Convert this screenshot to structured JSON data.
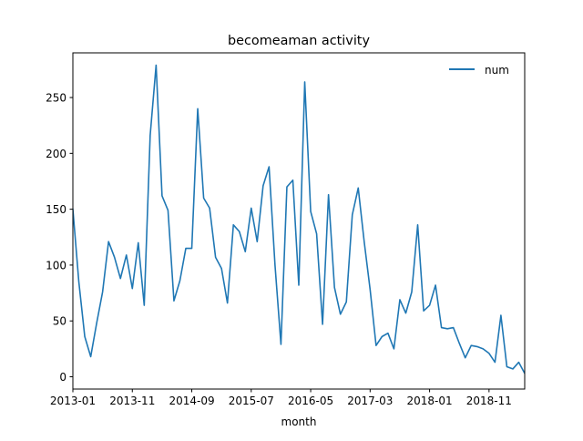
{
  "chart_data": {
    "type": "line",
    "title": "becomeaman activity",
    "xlabel": "month",
    "ylabel": "",
    "x_tick_labels": [
      "2013-01",
      "2013-11",
      "2014-09",
      "2015-07",
      "2016-05",
      "2017-03",
      "2018-01",
      "2018-11"
    ],
    "y_ticks": [
      0,
      50,
      100,
      150,
      200,
      250
    ],
    "y_tick_labels": [
      "0",
      "50",
      "100",
      "150",
      "200",
      "250"
    ],
    "ylim": [
      -11,
      290
    ],
    "x_start": "2013-01",
    "legend": {
      "position": "upper right",
      "entries": [
        "num"
      ]
    },
    "grid": false,
    "line_color": "#1f77b4",
    "series": [
      {
        "name": "num",
        "values": [
          150,
          85,
          36,
          18,
          48,
          76,
          121,
          107,
          88,
          109,
          79,
          120,
          64,
          216,
          279,
          162,
          149,
          68,
          86,
          115,
          115,
          240,
          160,
          151,
          107,
          97,
          66,
          136,
          130,
          112,
          151,
          121,
          171,
          188,
          100,
          29,
          170,
          176,
          82,
          264,
          148,
          128,
          47,
          163,
          80,
          56,
          67,
          145,
          169,
          121,
          78,
          28,
          36,
          39,
          25,
          69,
          57,
          76,
          136,
          59,
          64,
          82,
          44,
          43,
          44,
          30,
          17,
          28,
          27,
          25,
          21,
          13,
          55,
          9,
          7,
          13,
          3
        ]
      }
    ]
  }
}
